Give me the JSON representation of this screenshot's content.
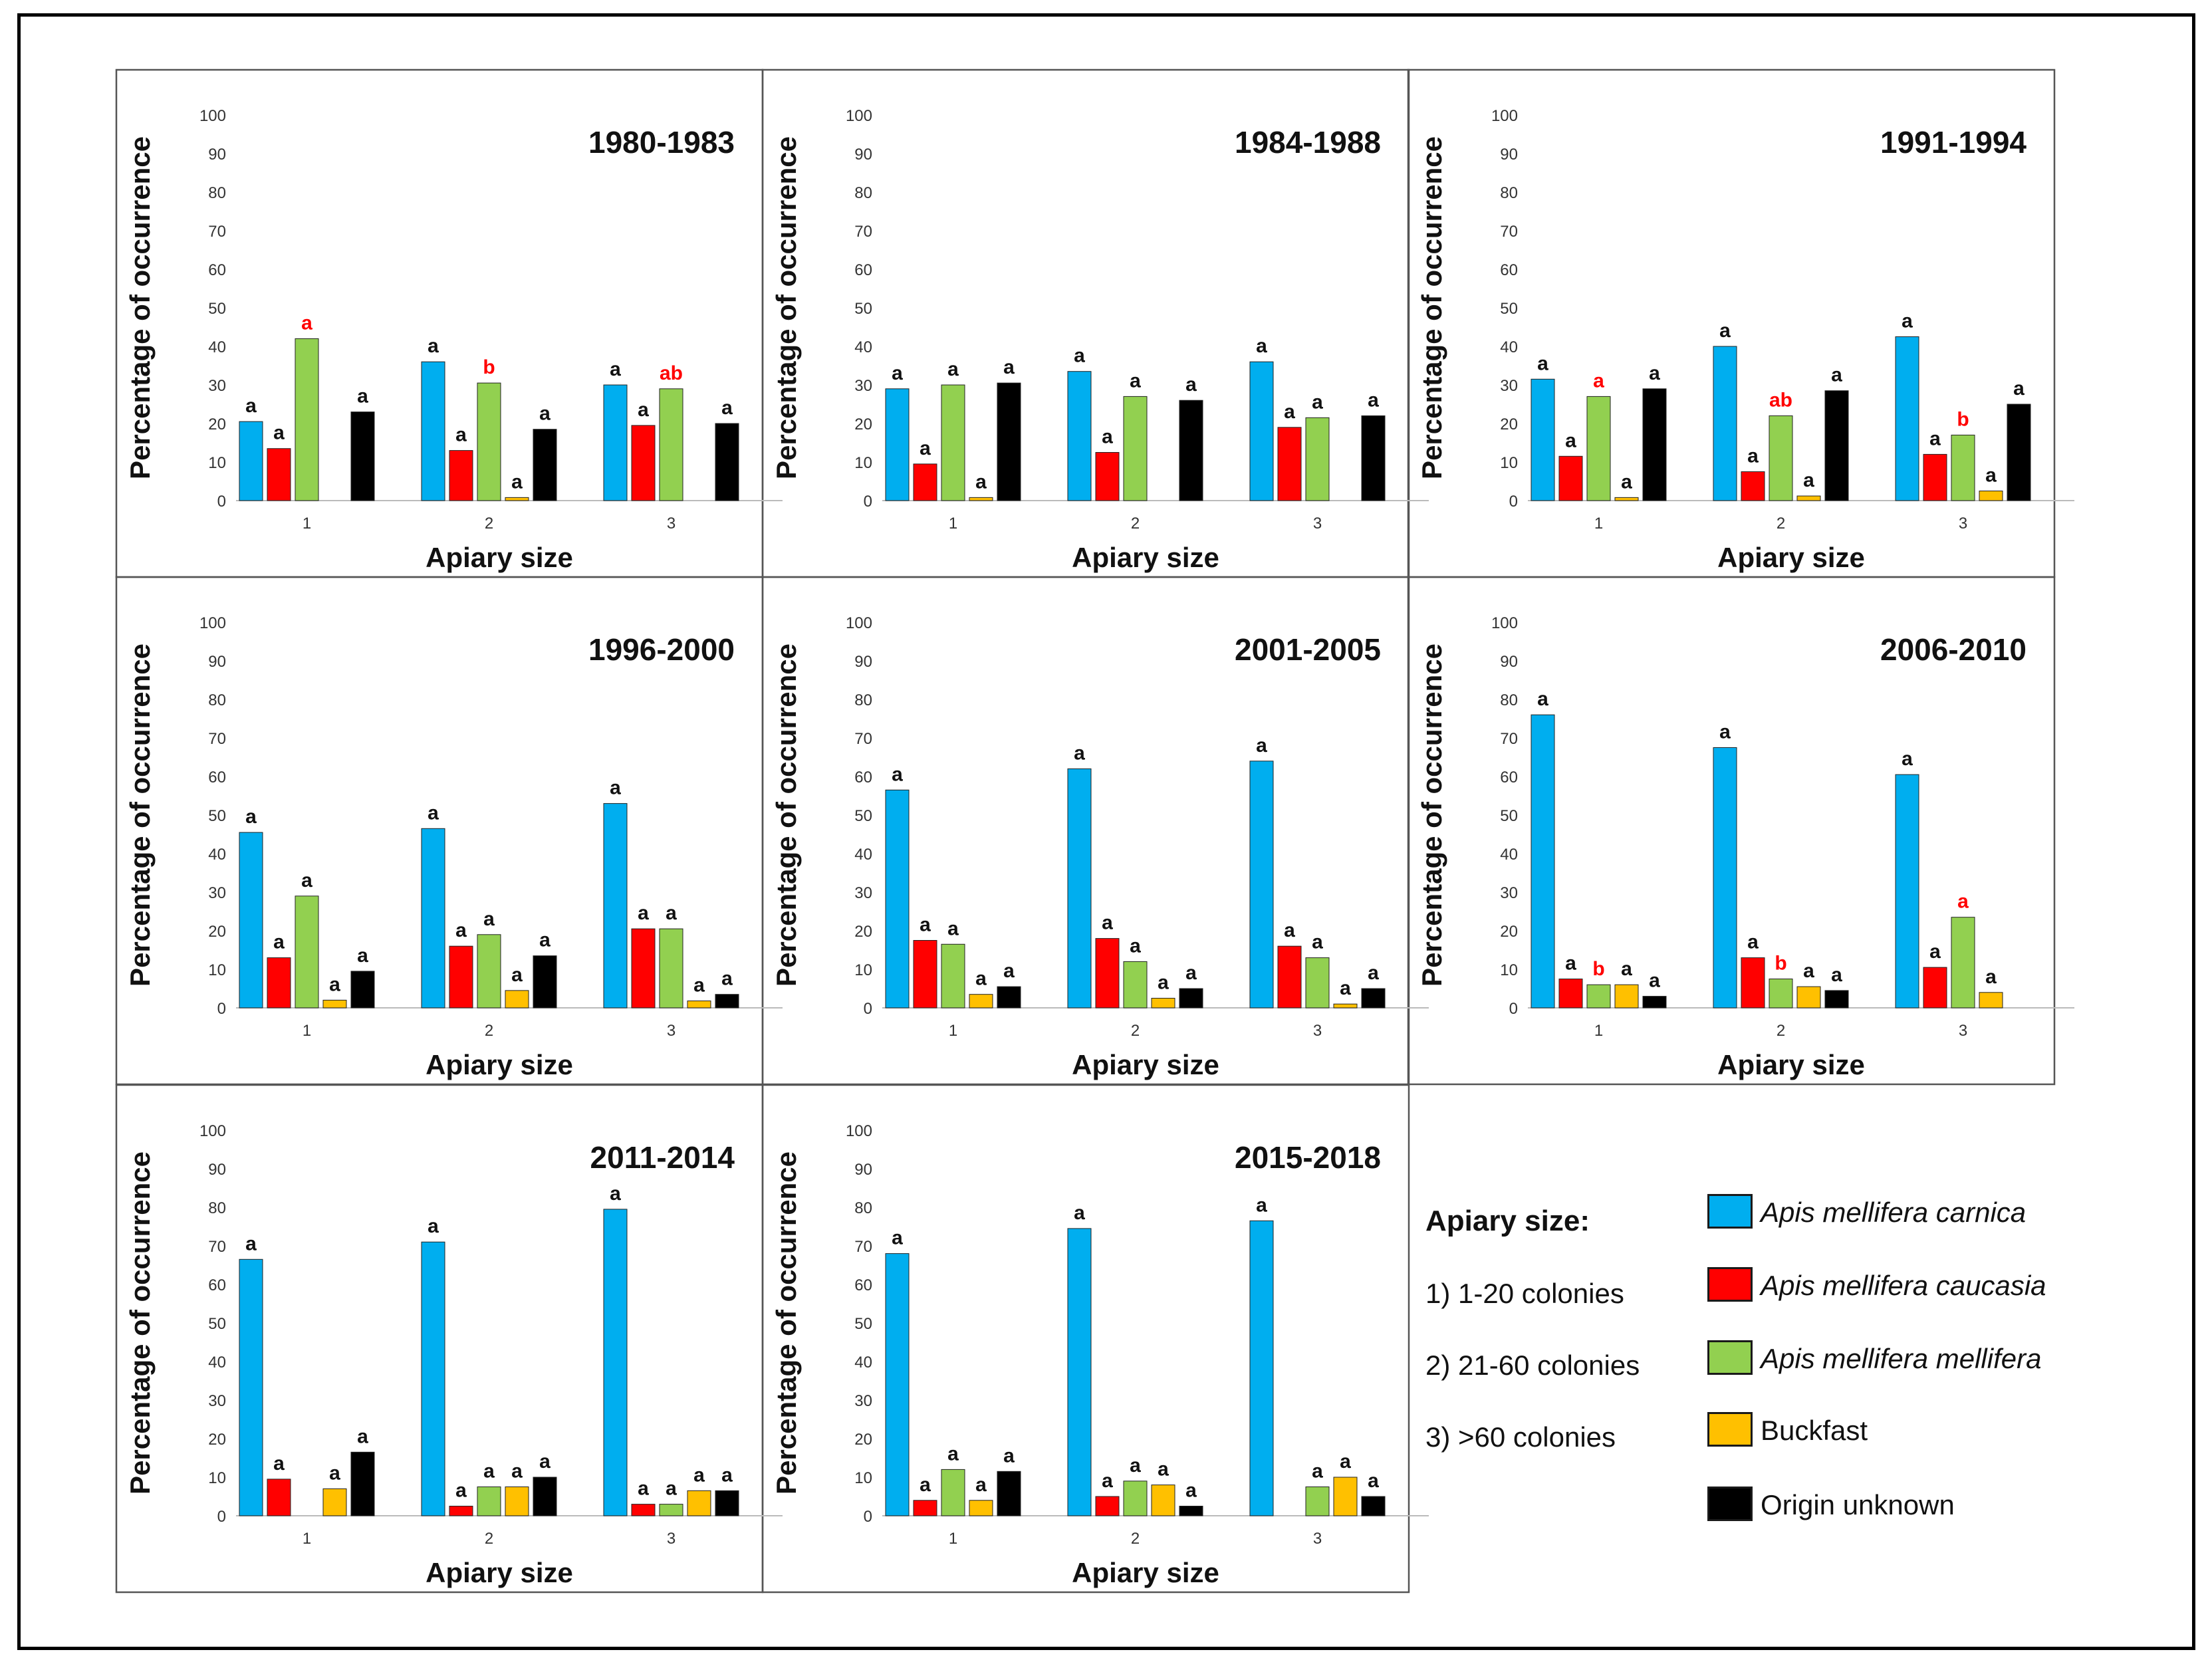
{
  "colors": {
    "carnica": "#00AEEF",
    "caucasia": "#FF0000",
    "mellifera": "#92D050",
    "buckfast": "#FFC000",
    "unknown": "#000000",
    "letter_default": "#111111",
    "letter_highlight": "#FF0000"
  },
  "legend": {
    "title": "Apiary size:",
    "sizes": [
      "1) 1-20 colonies",
      "2) 21-60 colonies",
      "3) >60 colonies"
    ],
    "series": [
      {
        "key": "carnica",
        "label": "Apis mellifera carnica",
        "italic": true
      },
      {
        "key": "caucasia",
        "label": "Apis mellifera caucasia",
        "italic": true
      },
      {
        "key": "mellifera",
        "label": "Apis mellifera mellifera",
        "italic": true
      },
      {
        "key": "buckfast",
        "label": "Buckfast",
        "italic": false
      },
      {
        "key": "unknown",
        "label": "Origin unknown",
        "italic": false
      }
    ]
  },
  "chart_data": [
    {
      "type": "bar",
      "title": "1980-1983",
      "xlabel": "Apiary size",
      "ylabel": "Percentage of occurrence",
      "categories": [
        "1",
        "2",
        "3"
      ],
      "ylim": [
        0,
        100
      ],
      "yticks": [
        0,
        10,
        20,
        30,
        40,
        50,
        60,
        70,
        80,
        90,
        100
      ],
      "series": [
        {
          "name": "Apis mellifera carnica",
          "values": [
            20.5,
            36,
            30
          ],
          "letters": [
            "a",
            "a",
            "a"
          ]
        },
        {
          "name": "Apis mellifera caucasia",
          "values": [
            13.5,
            13,
            19.5
          ],
          "letters": [
            "a",
            "a",
            "a"
          ]
        },
        {
          "name": "Apis mellifera mellifera",
          "values": [
            42,
            30.5,
            29
          ],
          "letters": [
            "a",
            "b",
            "ab"
          ],
          "highlight": true
        },
        {
          "name": "Buckfast",
          "values": [
            0,
            0.8,
            0
          ],
          "letters": [
            "",
            "a",
            ""
          ]
        },
        {
          "name": "Origin unknown",
          "values": [
            23,
            18.5,
            20
          ],
          "letters": [
            "a",
            "a",
            "a"
          ]
        }
      ]
    },
    {
      "type": "bar",
      "title": "1984-1988",
      "xlabel": "Apiary size",
      "ylabel": "Percentage of occurrence",
      "categories": [
        "1",
        "2",
        "3"
      ],
      "ylim": [
        0,
        100
      ],
      "yticks": [
        0,
        10,
        20,
        30,
        40,
        50,
        60,
        70,
        80,
        90,
        100
      ],
      "series": [
        {
          "name": "Apis mellifera carnica",
          "values": [
            29,
            33.5,
            36
          ],
          "letters": [
            "a",
            "a",
            "a"
          ]
        },
        {
          "name": "Apis mellifera caucasia",
          "values": [
            9.5,
            12.5,
            19
          ],
          "letters": [
            "a",
            "a",
            "a"
          ]
        },
        {
          "name": "Apis mellifera mellifera",
          "values": [
            30,
            27,
            21.5
          ],
          "letters": [
            "a",
            "a",
            "a"
          ]
        },
        {
          "name": "Buckfast",
          "values": [
            0.8,
            0,
            0
          ],
          "letters": [
            "a",
            "",
            ""
          ]
        },
        {
          "name": "Origin unknown",
          "values": [
            30.5,
            26,
            22
          ],
          "letters": [
            "a",
            "a",
            "a"
          ]
        }
      ]
    },
    {
      "type": "bar",
      "title": "1991-1994",
      "xlabel": "Apiary size",
      "ylabel": "Percentage of occurrence",
      "categories": [
        "1",
        "2",
        "3"
      ],
      "ylim": [
        0,
        100
      ],
      "yticks": [
        0,
        10,
        20,
        30,
        40,
        50,
        60,
        70,
        80,
        90,
        100
      ],
      "series": [
        {
          "name": "Apis mellifera carnica",
          "values": [
            31.5,
            40,
            42.5
          ],
          "letters": [
            "a",
            "a",
            "a"
          ]
        },
        {
          "name": "Apis mellifera caucasia",
          "values": [
            11.5,
            7.5,
            12
          ],
          "letters": [
            "a",
            "a",
            "a"
          ]
        },
        {
          "name": "Apis mellifera mellifera",
          "values": [
            27,
            22,
            17
          ],
          "letters": [
            "a",
            "ab",
            "b"
          ],
          "highlight": true
        },
        {
          "name": "Buckfast",
          "values": [
            0.8,
            1.2,
            2.5
          ],
          "letters": [
            "a",
            "a",
            "a"
          ]
        },
        {
          "name": "Origin unknown",
          "values": [
            29,
            28.5,
            25
          ],
          "letters": [
            "a",
            "a",
            "a"
          ]
        }
      ]
    },
    {
      "type": "bar",
      "title": "1996-2000",
      "xlabel": "Apiary size",
      "ylabel": "Percentage of occurrence",
      "categories": [
        "1",
        "2",
        "3"
      ],
      "ylim": [
        0,
        100
      ],
      "yticks": [
        0,
        10,
        20,
        30,
        40,
        50,
        60,
        70,
        80,
        90,
        100
      ],
      "series": [
        {
          "name": "Apis mellifera carnica",
          "values": [
            45.5,
            46.5,
            53
          ],
          "letters": [
            "a",
            "a",
            "a"
          ]
        },
        {
          "name": "Apis mellifera caucasia",
          "values": [
            13,
            16,
            20.5
          ],
          "letters": [
            "a",
            "a",
            "a"
          ]
        },
        {
          "name": "Apis mellifera mellifera",
          "values": [
            29,
            19,
            20.5
          ],
          "letters": [
            "a",
            "a",
            "a"
          ]
        },
        {
          "name": "Buckfast",
          "values": [
            2,
            4.5,
            1.8
          ],
          "letters": [
            "a",
            "a",
            "a"
          ]
        },
        {
          "name": "Origin unknown",
          "values": [
            9.5,
            13.5,
            3.5
          ],
          "letters": [
            "a",
            "a",
            "a"
          ]
        }
      ]
    },
    {
      "type": "bar",
      "title": "2001-2005",
      "xlabel": "Apiary size",
      "ylabel": "Percentage of occurrence",
      "categories": [
        "1",
        "2",
        "3"
      ],
      "ylim": [
        0,
        100
      ],
      "yticks": [
        0,
        10,
        20,
        30,
        40,
        50,
        60,
        70,
        80,
        90,
        100
      ],
      "series": [
        {
          "name": "Apis mellifera carnica",
          "values": [
            56.5,
            62,
            64
          ],
          "letters": [
            "a",
            "a",
            "a"
          ]
        },
        {
          "name": "Apis mellifera caucasia",
          "values": [
            17.5,
            18,
            16
          ],
          "letters": [
            "a",
            "a",
            "a"
          ]
        },
        {
          "name": "Apis mellifera mellifera",
          "values": [
            16.5,
            12,
            13
          ],
          "letters": [
            "a",
            "a",
            "a"
          ]
        },
        {
          "name": "Buckfast",
          "values": [
            3.5,
            2.5,
            1
          ],
          "letters": [
            "a",
            "a",
            "a"
          ]
        },
        {
          "name": "Origin unknown",
          "values": [
            5.5,
            5,
            5
          ],
          "letters": [
            "a",
            "a",
            "a"
          ]
        }
      ]
    },
    {
      "type": "bar",
      "title": "2006-2010",
      "xlabel": "Apiary size",
      "ylabel": "Percentage of occurrence",
      "categories": [
        "1",
        "2",
        "3"
      ],
      "ylim": [
        0,
        100
      ],
      "yticks": [
        0,
        10,
        20,
        30,
        40,
        50,
        60,
        70,
        80,
        90,
        100
      ],
      "series": [
        {
          "name": "Apis mellifera carnica",
          "values": [
            76,
            67.5,
            60.5
          ],
          "letters": [
            "a",
            "a",
            "a"
          ]
        },
        {
          "name": "Apis mellifera caucasia",
          "values": [
            7.5,
            13,
            10.5
          ],
          "letters": [
            "a",
            "a",
            "a"
          ]
        },
        {
          "name": "Apis mellifera mellifera",
          "values": [
            6,
            7.5,
            23.5
          ],
          "letters": [
            "b",
            "b",
            "a"
          ],
          "highlight": true
        },
        {
          "name": "Buckfast",
          "values": [
            6,
            5.5,
            4
          ],
          "letters": [
            "a",
            "a",
            "a"
          ]
        },
        {
          "name": "Origin unknown",
          "values": [
            3,
            4.5,
            0
          ],
          "letters": [
            "a",
            "a",
            ""
          ]
        }
      ]
    },
    {
      "type": "bar",
      "title": "2011-2014",
      "xlabel": "Apiary size",
      "ylabel": "Percentage of occurrence",
      "categories": [
        "1",
        "2",
        "3"
      ],
      "ylim": [
        0,
        100
      ],
      "yticks": [
        0,
        10,
        20,
        30,
        40,
        50,
        60,
        70,
        80,
        90,
        100
      ],
      "series": [
        {
          "name": "Apis mellifera carnica",
          "values": [
            66.5,
            71,
            79.5
          ],
          "letters": [
            "a",
            "a",
            "a"
          ]
        },
        {
          "name": "Apis mellifera caucasia",
          "values": [
            9.5,
            2.5,
            3
          ],
          "letters": [
            "a",
            "a",
            "a"
          ]
        },
        {
          "name": "Apis mellifera mellifera",
          "values": [
            0,
            7.5,
            3
          ],
          "letters": [
            "",
            "a",
            "a"
          ]
        },
        {
          "name": "Buckfast",
          "values": [
            7,
            7.5,
            6.5
          ],
          "letters": [
            "a",
            "a",
            "a"
          ]
        },
        {
          "name": "Origin unknown",
          "values": [
            16.5,
            10,
            6.5
          ],
          "letters": [
            "a",
            "a",
            "a"
          ]
        }
      ]
    },
    {
      "type": "bar",
      "title": "2015-2018",
      "xlabel": "Apiary size",
      "ylabel": "Percentage of occurrence",
      "categories": [
        "1",
        "2",
        "3"
      ],
      "ylim": [
        0,
        100
      ],
      "yticks": [
        0,
        10,
        20,
        30,
        40,
        50,
        60,
        70,
        80,
        90,
        100
      ],
      "series": [
        {
          "name": "Apis mellifera carnica",
          "values": [
            68,
            74.5,
            76.5
          ],
          "letters": [
            "a",
            "a",
            "a"
          ]
        },
        {
          "name": "Apis mellifera caucasia",
          "values": [
            4,
            5,
            0
          ],
          "letters": [
            "a",
            "a",
            ""
          ]
        },
        {
          "name": "Apis mellifera mellifera",
          "values": [
            12,
            9,
            7.5
          ],
          "letters": [
            "a",
            "a",
            "a"
          ]
        },
        {
          "name": "Buckfast",
          "values": [
            4,
            8,
            10
          ],
          "letters": [
            "a",
            "a",
            "a"
          ]
        },
        {
          "name": "Origin unknown",
          "values": [
            11.5,
            2.5,
            5
          ],
          "letters": [
            "a",
            "a",
            "a"
          ]
        }
      ]
    }
  ]
}
